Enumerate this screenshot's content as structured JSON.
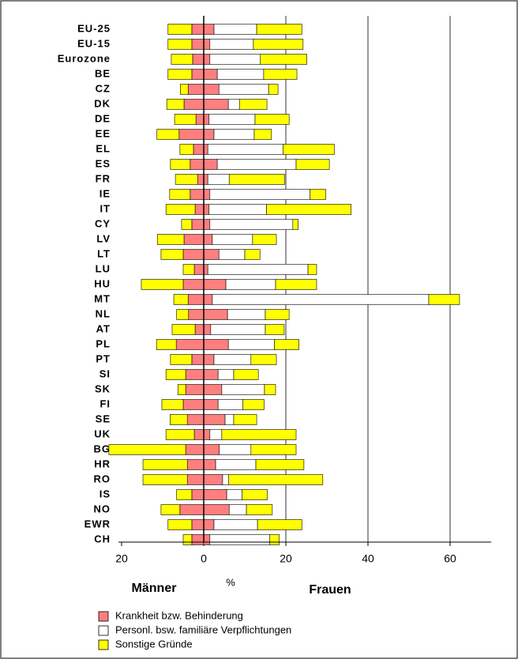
{
  "chart_data": {
    "type": "diverging-bar",
    "categories": [
      "EU-25",
      "EU-15",
      "Eurozone",
      "BE",
      "CZ",
      "DK",
      "DE",
      "EE",
      "EL",
      "ES",
      "FR",
      "IE",
      "IT",
      "CY",
      "LV",
      "LT",
      "LU",
      "HU",
      "MT",
      "NL",
      "AT",
      "PL",
      "PT",
      "SI",
      "SK",
      "FI",
      "SE",
      "UK",
      "BG",
      "HR",
      "RO",
      "IS",
      "NO",
      "EWR",
      "CH"
    ],
    "series": [
      {
        "name": "Krankheit bzw. Behinderung",
        "color": "#ff7f7f",
        "men": [
          -2.9,
          -2.9,
          -2.7,
          -2.9,
          -3.8,
          -4.8,
          -1.9,
          -6.0,
          -2.5,
          -3.3,
          -1.5,
          -3.3,
          -2.1,
          -2.9,
          -4.8,
          -5.0,
          -2.3,
          -5.0,
          -3.8,
          -3.7,
          -2.1,
          -6.7,
          -2.9,
          -4.4,
          -4.4,
          -5.0,
          -4.0,
          -2.3,
          -4.4,
          -4.0,
          -4.0,
          -2.9,
          -5.8,
          -2.9,
          -2.9
        ],
        "women": [
          2.5,
          1.5,
          1.5,
          3.3,
          3.7,
          6.0,
          1.3,
          2.5,
          1.0,
          3.3,
          1.0,
          1.5,
          1.3,
          1.5,
          2.1,
          3.7,
          1.0,
          5.4,
          2.1,
          5.8,
          1.7,
          6.0,
          2.5,
          3.5,
          4.4,
          3.5,
          5.2,
          1.5,
          3.8,
          2.9,
          4.6,
          5.6,
          6.2,
          2.5,
          1.5
        ]
      },
      {
        "name": "Personl. bsw. familiäre Verpflichtungen",
        "color": "#ffffff",
        "men": [
          0,
          0,
          0,
          0,
          0,
          0,
          0,
          0,
          0,
          0,
          0,
          0,
          0,
          0,
          0,
          0,
          0,
          0,
          0,
          0,
          0,
          0,
          0,
          0,
          0,
          0,
          0,
          0,
          0,
          0,
          0,
          0,
          0,
          0,
          0
        ],
        "women": [
          10.4,
          10.6,
          12.3,
          11.3,
          12.1,
          2.7,
          11.2,
          9.8,
          18.3,
          19.2,
          5.2,
          24.4,
          14.0,
          20.2,
          9.8,
          6.3,
          24.4,
          12.1,
          52.7,
          9.2,
          13.3,
          11.2,
          9.0,
          3.8,
          10.4,
          6.0,
          2.1,
          2.9,
          7.7,
          9.8,
          1.5,
          3.7,
          4.2,
          10.6,
          14.6
        ]
      },
      {
        "name": "Sonstige Gründe",
        "color": "#ffff00",
        "men": [
          -5.8,
          -5.8,
          -5.2,
          -5.8,
          -1.9,
          -4.2,
          -5.2,
          -5.4,
          -3.3,
          -4.8,
          -5.4,
          -5.0,
          -7.1,
          -2.5,
          -6.5,
          -5.4,
          -2.7,
          -10.2,
          -3.5,
          -2.9,
          -5.6,
          -4.8,
          -5.2,
          -4.8,
          -1.9,
          -5.2,
          -4.2,
          -6.9,
          -18.7,
          -10.8,
          -10.8,
          -3.7,
          -4.6,
          -5.8,
          -2.1
        ],
        "women": [
          11.0,
          12.1,
          11.3,
          8.1,
          2.3,
          6.7,
          8.3,
          4.2,
          12.5,
          8.1,
          13.5,
          3.8,
          20.6,
          1.3,
          5.8,
          3.7,
          2.1,
          10.0,
          7.5,
          5.8,
          4.6,
          6.0,
          6.2,
          6.0,
          2.7,
          5.2,
          5.6,
          18.1,
          11.0,
          11.7,
          22.9,
          6.2,
          6.3,
          10.8,
          2.3
        ]
      }
    ],
    "xlim": [
      -20,
      70
    ],
    "xticks": [
      {
        "value": -20,
        "label": "20"
      },
      0,
      20,
      40,
      60
    ],
    "xlabel": "%",
    "left_label": "Männer",
    "right_label": "Frauen",
    "grid": true
  }
}
